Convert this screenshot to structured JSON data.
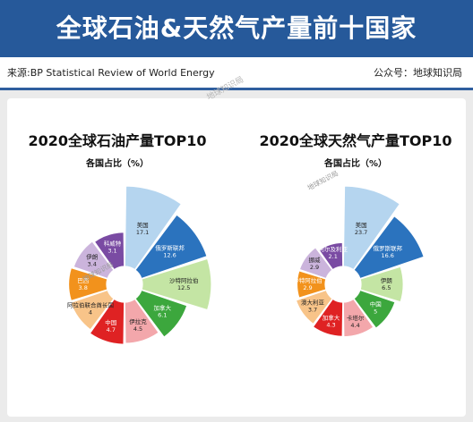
{
  "header": {
    "title": "全球石油&天然气产量前十国家",
    "source": "来源:BP Statistical Review of World Energy",
    "account": "公众号：地球知识局"
  },
  "watermark": "地球知识局",
  "chart_data": [
    {
      "type": "pie",
      "title": "2020全球石油产量TOP10",
      "subtitle": "各国占比（%）",
      "categories": [
        "美国",
        "俄罗斯联邦",
        "沙特阿拉伯",
        "加拿大",
        "伊拉克",
        "中国",
        "阿拉伯联合酋长国",
        "巴西",
        "伊朗",
        "科威特"
      ],
      "values": [
        17.1,
        12.6,
        12.5,
        6.1,
        4.5,
        4.7,
        4,
        3.8,
        3.4,
        3.1
      ],
      "value_labels": [
        "17.1",
        "12.6",
        "12.5",
        "6.1",
        "4.5",
        "4.7",
        "4",
        "3.8",
        "3.4",
        "3.1"
      ],
      "colors": [
        "#b5d5ef",
        "#2b73be",
        "#c4e5a4",
        "#3ca73d",
        "#f3a7ab",
        "#df2223",
        "#f8c489",
        "#f2921c",
        "#cbb4dc",
        "#7a4ba3"
      ],
      "label_colors": [
        "#222222",
        "#ffffff",
        "#222222",
        "#ffffff",
        "#222222",
        "#ffffff",
        "#222222",
        "#ffffff",
        "#222222",
        "#ffffff"
      ]
    },
    {
      "type": "pie",
      "title": "2020全球天然气产量TOP10",
      "subtitle": "各国占比（%）",
      "categories": [
        "美国",
        "俄罗斯联邦",
        "伊朗",
        "中国",
        "卡塔尔",
        "加拿大",
        "澳大利亚",
        "沙特阿拉伯",
        "挪威",
        "阿尔及利亚"
      ],
      "values": [
        23.7,
        16.6,
        6.5,
        5,
        4.4,
        4.3,
        3.7,
        2.9,
        2.9,
        2.1
      ],
      "value_labels": [
        "23.7",
        "16.6",
        "6.5",
        "5",
        "4.4",
        "4.3",
        "3.7",
        "2.9",
        "2.9",
        "2.1"
      ],
      "colors": [
        "#b5d5ef",
        "#2b73be",
        "#c4e5a4",
        "#3ca73d",
        "#f3a7ab",
        "#df2223",
        "#f8c489",
        "#f2921c",
        "#cbb4dc",
        "#7a4ba3"
      ],
      "label_colors": [
        "#222222",
        "#ffffff",
        "#222222",
        "#ffffff",
        "#222222",
        "#ffffff",
        "#222222",
        "#ffffff",
        "#222222",
        "#ffffff"
      ]
    }
  ]
}
